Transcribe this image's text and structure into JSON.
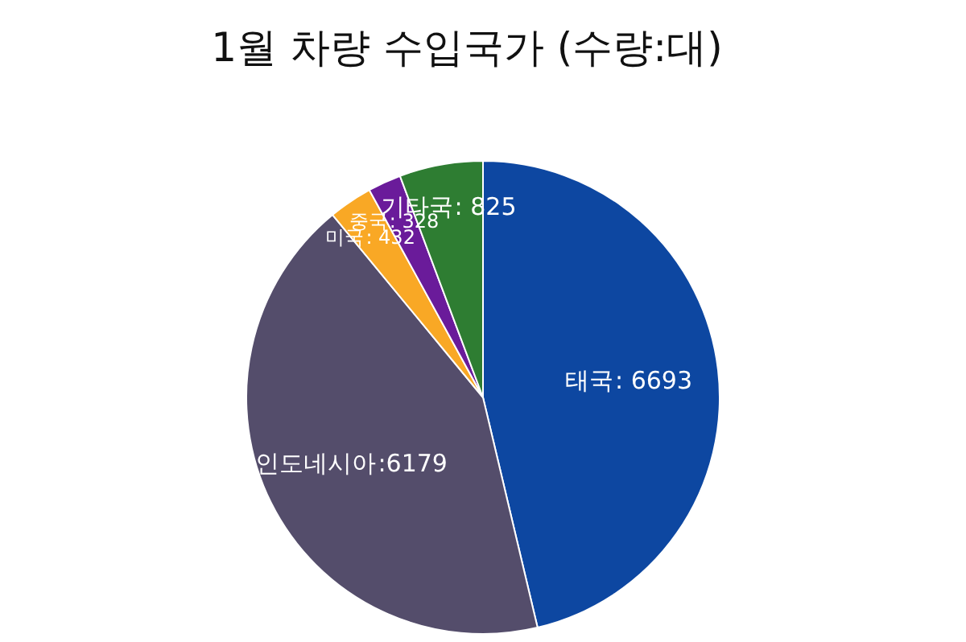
{
  "chart_data": {
    "type": "pie",
    "title": "1월 차량 수입국가 (수량:대)",
    "categories": [
      "태국",
      "인도네시아",
      "미국",
      "중국",
      "기타국"
    ],
    "values": [
      6693,
      6179,
      432,
      328,
      825
    ],
    "value_labels": [
      ": 6693",
      ":6179",
      ": 432",
      ": 328",
      ": 825"
    ],
    "colors": [
      "#0d47a1",
      "#544d6b",
      "#f9a825",
      "#6a1b9a",
      "#2e7d32"
    ]
  }
}
